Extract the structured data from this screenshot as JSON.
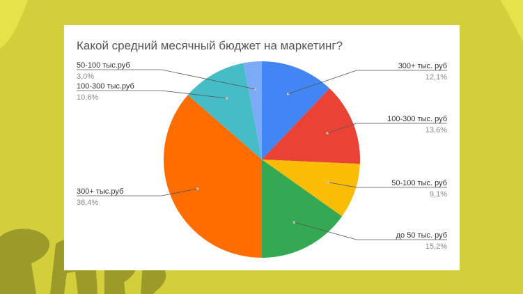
{
  "page": {
    "background": "#d3cf3c",
    "wave_color": "#e6e24a",
    "logo_color": "#9c9a28"
  },
  "chart_data": {
    "type": "pie",
    "title": "Какой средний месячный бюджет на маркетинг?",
    "slices": [
      {
        "label": "300+ тыс. руб",
        "value": 12.1,
        "pct_label": "12,1%",
        "color": "#4285f4",
        "side": "right"
      },
      {
        "label": "100-300 тыс. руб",
        "value": 13.6,
        "pct_label": "13,6%",
        "color": "#ea4335",
        "side": "right"
      },
      {
        "label": "50-100 тыс. руб",
        "value": 9.1,
        "pct_label": "9,1%",
        "color": "#fbbc04",
        "side": "right"
      },
      {
        "label": "до 50 тыс. руб",
        "value": 15.2,
        "pct_label": "15,2%",
        "color": "#34a853",
        "side": "right"
      },
      {
        "label": "300+ тыс.руб",
        "value": 36.4,
        "pct_label": "36,4%",
        "color": "#ff6d01",
        "side": "left"
      },
      {
        "label": "100-300 тыс.руб",
        "value": 10.6,
        "pct_label": "10,6%",
        "color": "#46bdc6",
        "side": "left"
      },
      {
        "label": "50-100 тыс.руб",
        "value": 3.0,
        "pct_label": "3,0%",
        "color": "#7baaf7",
        "side": "left"
      }
    ],
    "start_angle": "12 o'clock",
    "direction": "clockwise",
    "legend": "labels with leader lines"
  }
}
